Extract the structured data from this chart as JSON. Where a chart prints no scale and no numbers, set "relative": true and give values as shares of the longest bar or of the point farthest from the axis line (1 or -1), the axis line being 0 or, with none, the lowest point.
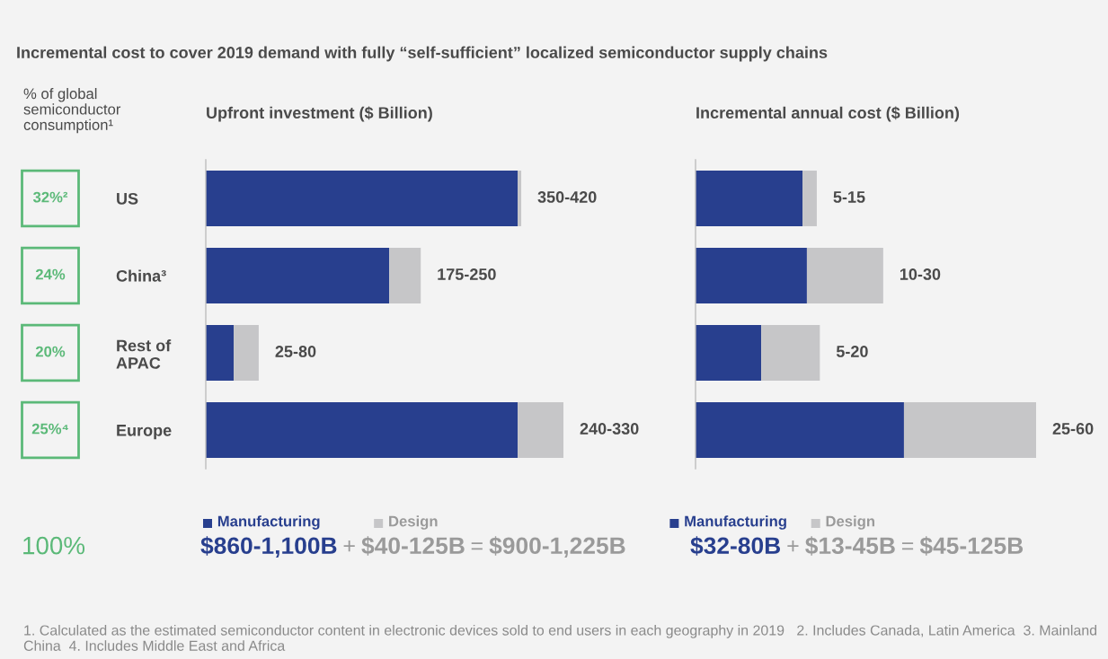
{
  "chart_data": [
    {
      "type": "other",
      "title": "Incremental cost to cover 2019 demand with fully “self-sufficient” localized semiconductor supply chains",
      "subtitle": "% of global\nsemiconductor\nconsumption¹",
      "annotations": [
        "32%²",
        "24%",
        "20%",
        "25%⁴",
        "100%"
      ]
    },
    {
      "type": "bar",
      "orientation": "horizontal",
      "stacked": true,
      "relative": true,
      "legend": "bottom",
      "title": "Upfront investment ($ Billion)",
      "categories": [
        "US",
        "China³",
        "Rest of\nAPAC",
        "Europe"
      ],
      "series": [
        {
          "name": "Manufacturing",
          "color": "#283f8e",
          "values": [
            0.872,
            0.513,
            0.078,
            0.872
          ]
        },
        {
          "name": "Design",
          "color": "#c6c6c8",
          "values": [
            0.01,
            0.088,
            0.07,
            0.128
          ]
        }
      ],
      "totals": [
        "350-420",
        "175-250",
        "25-80",
        "240-330"
      ],
      "annotations": [
        "$860-1,100B",
        "+",
        "$40-125B",
        "=",
        "$900-1,225B"
      ]
    },
    {
      "type": "bar",
      "orientation": "horizontal",
      "stacked": true,
      "relative": true,
      "legend": "bottom",
      "title": "Incremental annual cost ($ Billion)",
      "categories": [
        null,
        null,
        null,
        null
      ],
      "series": [
        {
          "name": "Manufacturing",
          "color": "#283f8e",
          "values": [
            0.314,
            0.327,
            0.193,
            0.612
          ]
        },
        {
          "name": "Design",
          "color": "#c6c6c8",
          "values": [
            0.042,
            0.224,
            0.172,
            0.388
          ]
        }
      ],
      "totals": [
        "5-15",
        "10-30",
        "5-20",
        "25-60"
      ],
      "annotations": [
        "$32-80B",
        "+",
        "$13-45B",
        "=",
        "$45-125B",
        "1. Calculated as the estimated semiconductor content in electronic devices sold to end users in each geography in 2019   2. Includes Canada, Latin America  3. Mainland China  4. Includes Middle East and Africa"
      ]
    }
  ]
}
